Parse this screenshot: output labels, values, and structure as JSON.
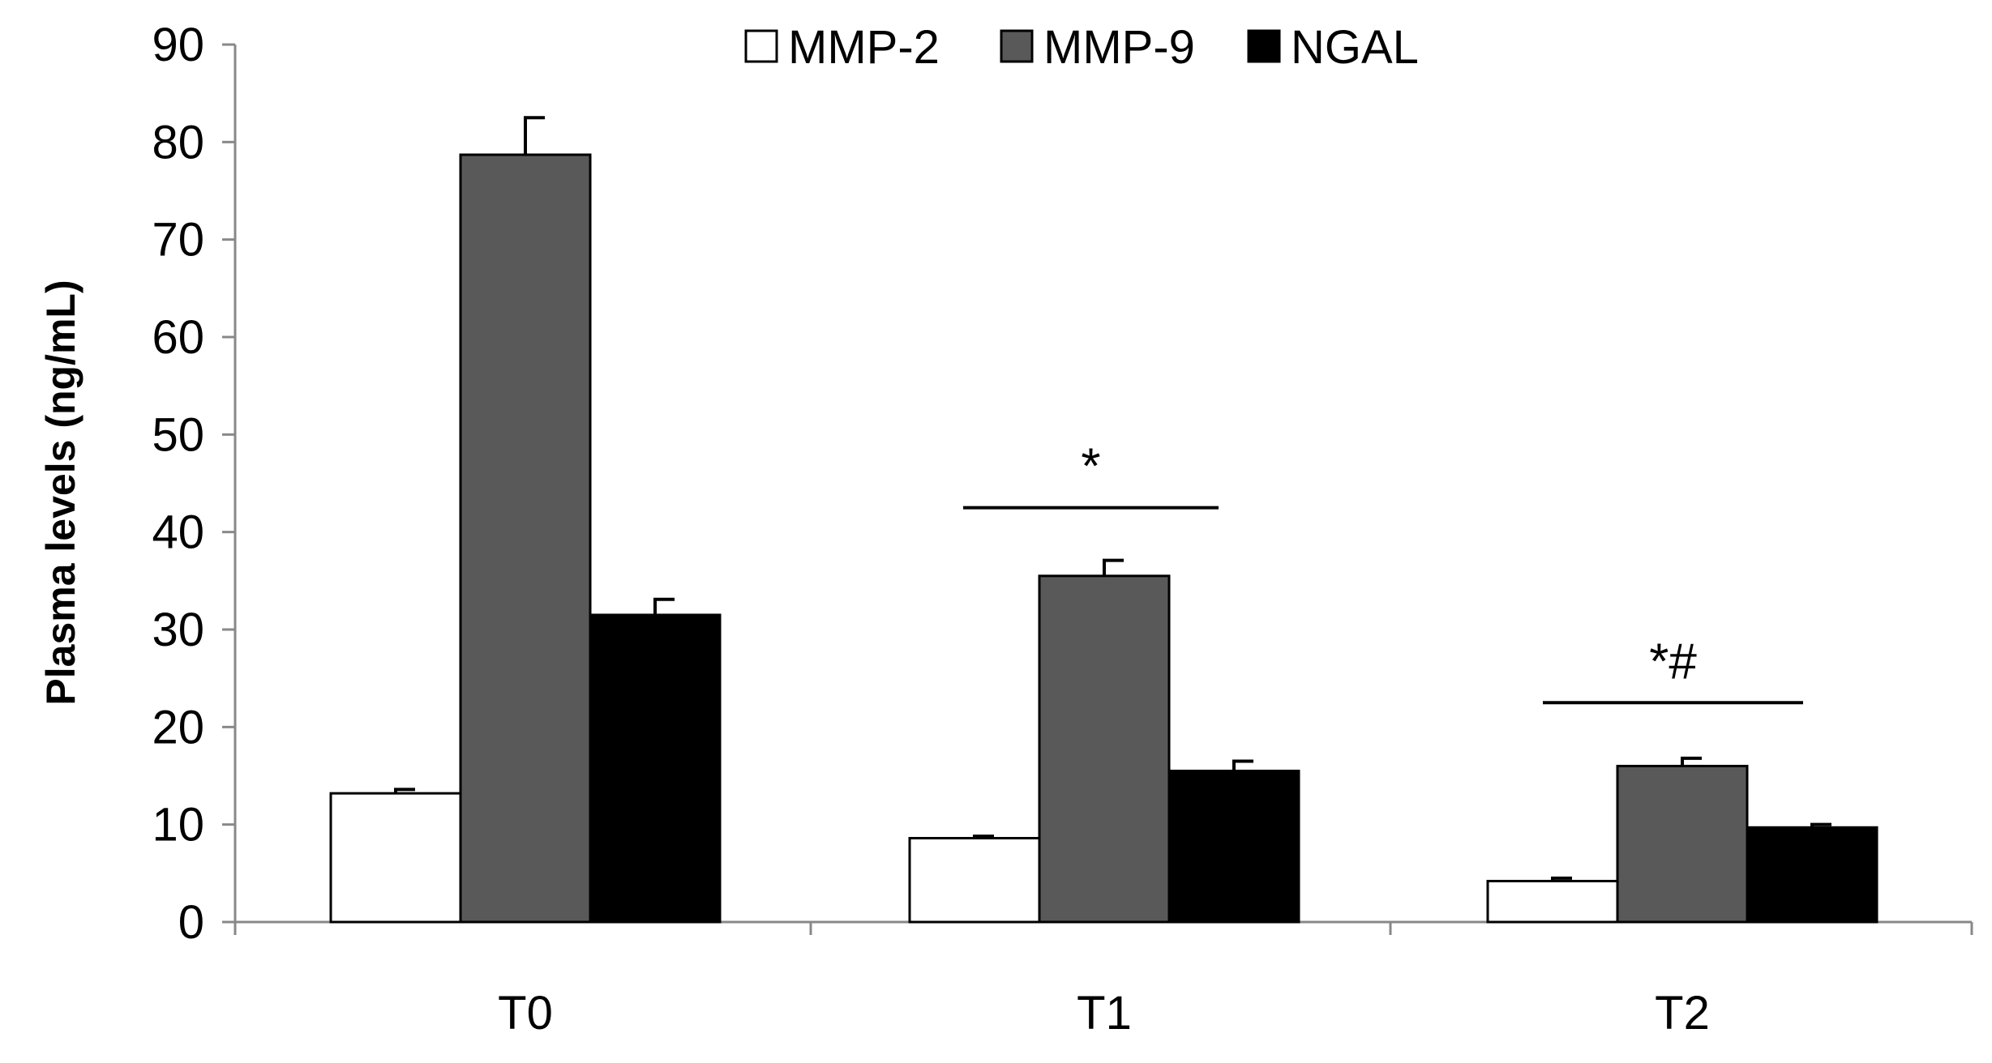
{
  "chart_data": {
    "type": "bar",
    "title": "",
    "xlabel": "",
    "ylabel": "Plasma levels (ng/mL)",
    "ylim": [
      0,
      90
    ],
    "yticks": [
      0,
      10,
      20,
      30,
      40,
      50,
      60,
      70,
      80,
      90
    ],
    "grid": false,
    "legend_position": "top-center",
    "categories": [
      "T0",
      "T1",
      "T2"
    ],
    "series": [
      {
        "name": "MMP-2",
        "color": "#ffffff",
        "values": [
          13.2,
          8.6,
          4.2
        ],
        "errors": [
          0.4,
          0.2,
          0.3
        ]
      },
      {
        "name": "MMP-9",
        "color": "#595959",
        "values": [
          78.7,
          35.5,
          16.0
        ],
        "errors": [
          3.8,
          1.6,
          0.8
        ]
      },
      {
        "name": "NGAL",
        "color": "#000000",
        "values": [
          31.5,
          15.5,
          9.7
        ],
        "errors": [
          1.6,
          1.0,
          0.3
        ]
      }
    ],
    "annotations": [
      {
        "text": "*",
        "category": "T1",
        "bracket_value": 42.5
      },
      {
        "text": "*#",
        "category": "T2",
        "bracket_value": 22.5
      }
    ]
  }
}
